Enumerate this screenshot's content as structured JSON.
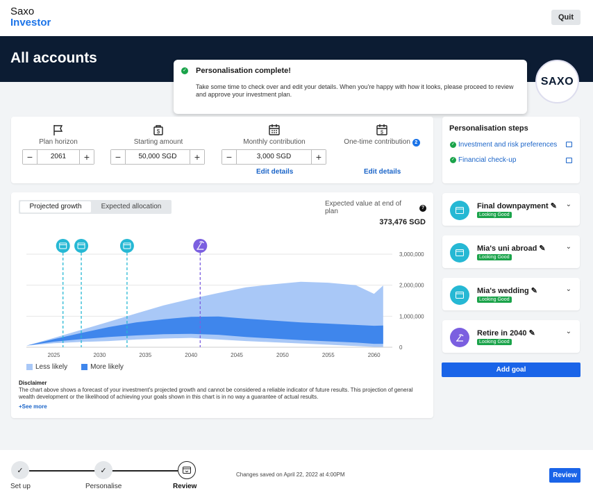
{
  "brand": {
    "line1": "Saxo",
    "line2": "Investor",
    "badge": "SAXO"
  },
  "quit_label": "Quit",
  "page_title": "All accounts",
  "toast": {
    "title": "Personalisation complete!",
    "message": "Take some time to check over and edit your details. When you're happy with how it looks, please proceed to review and approve your investment plan."
  },
  "inputs": {
    "plan_horizon": {
      "label": "Plan horizon",
      "value": "2061"
    },
    "starting_amount": {
      "label": "Starting amount",
      "value": "50,000 SGD"
    },
    "monthly_contribution": {
      "label": "Monthly contribution",
      "value": "3,000 SGD",
      "link": "Edit details"
    },
    "one_time_contribution": {
      "label": "One-time contribution",
      "count": "2",
      "link": "Edit details"
    }
  },
  "tabs": [
    "Projected growth",
    "Expected allocation"
  ],
  "expected": {
    "label": "Expected value at end of plan",
    "value": "373,476 SGD"
  },
  "legend": {
    "less": "Less likely",
    "more": "More likely"
  },
  "disclaimer": {
    "title": "Disclaimer",
    "text": "The chart above shows a forecast of your investment's projected growth and cannot be considered a reliable indicator of future results. This projection of general wealth development or the likelihood of achieving your goals shown in this chart is in no way a guarantee of actual results.",
    "see_more": "See more"
  },
  "steps": {
    "title": "Personalisation steps",
    "items": [
      "Investment and risk preferences",
      "Financial check-up"
    ]
  },
  "goals": [
    {
      "name": "Final downpayment",
      "status": "Looking Good",
      "icon": "card-icon",
      "color": "#26b8d4"
    },
    {
      "name": "Mia's uni abroad",
      "status": "Looking Good",
      "icon": "card-icon",
      "color": "#26b8d4"
    },
    {
      "name": "Mia's wedding",
      "status": "Looking Good",
      "icon": "card-icon",
      "color": "#26b8d4"
    },
    {
      "name": "Retire in 2040",
      "status": "Looking Good",
      "icon": "beach-icon",
      "color": "#7b5fe0"
    }
  ],
  "add_goal": "Add goal",
  "progress": {
    "steps": [
      "Set up",
      "Personalise",
      "Review"
    ],
    "saved": "Changes saved on April 22, 2022 at 4:00PM"
  },
  "review_label": "Review",
  "chart_data": {
    "type": "area",
    "x_ticks": [
      "2025",
      "2030",
      "2035",
      "2040",
      "2045",
      "2050",
      "2055",
      "2060"
    ],
    "y_ticks": [
      "0",
      "1,000,000",
      "2,000,000",
      "3,000,000"
    ],
    "ylim": [
      0,
      3000000
    ],
    "xlim": [
      2022,
      2062
    ],
    "series": [
      {
        "name": "Less likely",
        "x": [
          2022,
          2025,
          2028,
          2031,
          2034,
          2037,
          2040,
          2043,
          2046,
          2049,
          2052,
          2055,
          2058,
          2060,
          2061
        ],
        "upper": [
          50000,
          300000,
          560000,
          820000,
          1090000,
          1350000,
          1560000,
          1750000,
          1930000,
          2030000,
          2110000,
          2080000,
          2000000,
          1720000,
          1990000
        ],
        "lower": [
          50000,
          130000,
          170000,
          200000,
          250000,
          280000,
          300000,
          250000,
          200000,
          160000,
          120000,
          80000,
          40000,
          10000,
          5000
        ]
      },
      {
        "name": "More likely",
        "x": [
          2022,
          2025,
          2028,
          2031,
          2034,
          2037,
          2040,
          2043,
          2046,
          2049,
          2052,
          2055,
          2058,
          2060,
          2061
        ],
        "upper": [
          50000,
          260000,
          460000,
          650000,
          800000,
          900000,
          980000,
          990000,
          920000,
          860000,
          800000,
          760000,
          720000,
          690000,
          700000
        ],
        "lower": [
          50000,
          180000,
          260000,
          330000,
          380000,
          420000,
          430000,
          400000,
          330000,
          280000,
          230000,
          190000,
          150000,
          110000,
          110000
        ]
      }
    ],
    "markers": [
      {
        "year": 2026,
        "icon": "card-icon",
        "color": "#26b8d4"
      },
      {
        "year": 2028,
        "icon": "card-icon",
        "color": "#26b8d4"
      },
      {
        "year": 2033,
        "icon": "card-icon",
        "color": "#26b8d4"
      },
      {
        "year": 2041,
        "icon": "beach-icon",
        "color": "#7b5fe0"
      }
    ]
  }
}
